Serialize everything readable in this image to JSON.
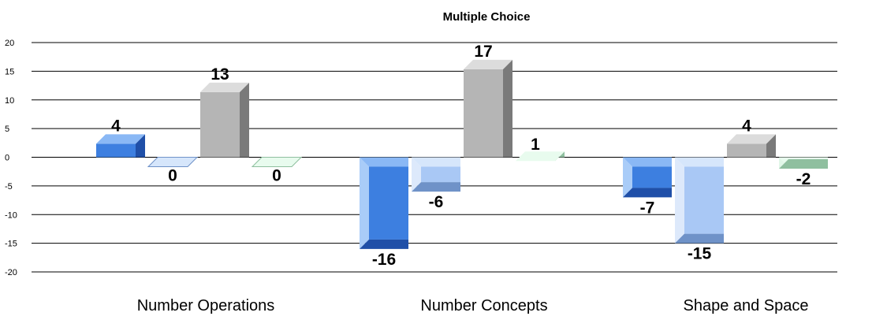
{
  "chart_data": {
    "type": "bar",
    "title": "Multiple Choice",
    "categories": [
      "Number Operations",
      "Number Concepts",
      "Shape and Space"
    ],
    "series": [
      {
        "values": [
          4,
          -16,
          -7
        ],
        "colors": {
          "front": "#3d7fe0",
          "side": "#1f4fa8",
          "top": "#8ab8f5",
          "left": "#a9ccf8"
        }
      },
      {
        "values": [
          0,
          -6,
          -15
        ],
        "colors": {
          "front": "#a9c8f5",
          "side": "#6f92c8",
          "top": "#d6e6fb",
          "left": "#dde9fb"
        }
      },
      {
        "values": [
          13,
          17,
          4
        ],
        "colors": {
          "front": "#b5b5b5",
          "side": "#7a7a7a",
          "top": "#dcdcdc",
          "left": "#e3e3e3"
        }
      },
      {
        "values": [
          0,
          1,
          -2
        ],
        "colors": {
          "front": "#c7f2d5",
          "side": "#8fbf9f",
          "top": "#e8fbee",
          "left": "#e1f7e8"
        }
      }
    ],
    "data_labels": [
      [
        "4",
        "-16",
        "-7"
      ],
      [
        "0",
        "-6",
        "-15"
      ],
      [
        "13",
        "17",
        "4"
      ],
      [
        "0",
        "1",
        "-2"
      ]
    ],
    "yticks": [
      "20",
      "15",
      "10",
      "5",
      "0",
      "-5",
      "-10",
      "-15",
      "-20"
    ],
    "ylim": [
      -20,
      20
    ],
    "grid": true,
    "xlabel": "",
    "ylabel": ""
  }
}
